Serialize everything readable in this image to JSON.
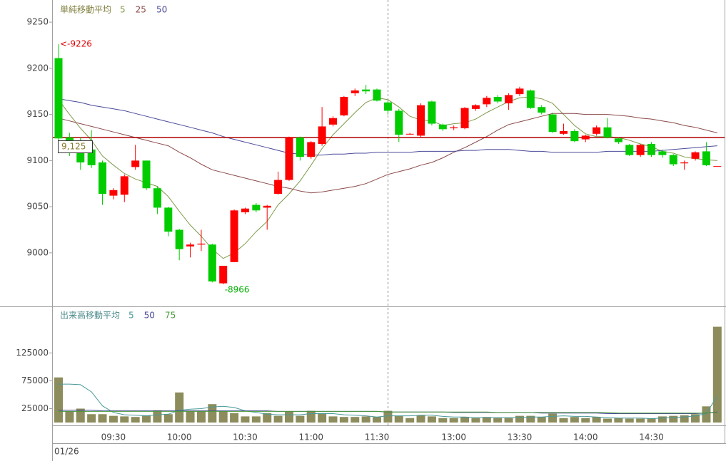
{
  "chart_data": [
    {
      "type": "candlestick",
      "title": "単純移動平均",
      "date": "01/26",
      "categories": [
        null,
        null,
        null,
        null,
        null,
        "09:30",
        null,
        null,
        null,
        null,
        null,
        "10:00",
        null,
        null,
        null,
        null,
        null,
        "10:30",
        null,
        null,
        null,
        null,
        null,
        "11:00",
        null,
        null,
        null,
        null,
        null,
        "11:30",
        null,
        null,
        null,
        null,
        null,
        null,
        "13:00",
        null,
        null,
        null,
        null,
        null,
        "13:30",
        null,
        null,
        null,
        null,
        null,
        "14:00",
        null,
        null,
        null,
        null,
        null,
        "14:30",
        null,
        null,
        null,
        null,
        null,
        null
      ],
      "open": [
        9211,
        9125,
        9116,
        9112,
        9098,
        9062,
        9063,
        9093,
        9100,
        9070,
        9049,
        9025,
        9007,
        9009,
        9009,
        8967,
        8990,
        9044,
        9052,
        9049,
        9064,
        9079,
        9125,
        9104,
        9118,
        9139,
        9149,
        9173,
        9177,
        9177,
        9163,
        9154,
        9129,
        9127,
        9164,
        9139,
        9135,
        9135,
        9156,
        9161,
        9169,
        9162,
        9172,
        9176,
        9158,
        9150,
        9129,
        9132,
        9123,
        9129,
        9136,
        9124,
        9117,
        9106,
        9118,
        9110,
        9106,
        9097,
        9102,
        9110,
        9094
      ],
      "high": [
        9226,
        9130,
        9125,
        9133,
        9100,
        9070,
        9085,
        9117,
        9100,
        9072,
        9050,
        9026,
        9011,
        9025,
        9010,
        8986,
        9047,
        9049,
        9054,
        9052,
        9088,
        9126,
        9126,
        9121,
        9158,
        9148,
        9170,
        9178,
        9182,
        9178,
        9165,
        9156,
        9130,
        9162,
        9165,
        9140,
        9138,
        9158,
        9161,
        9170,
        9171,
        9173,
        9180,
        9177,
        9160,
        9152,
        9140,
        9134,
        9128,
        9138,
        9146,
        9125,
        9118,
        9118,
        9120,
        9112,
        9107,
        9100,
        9110,
        9120,
        9094
      ],
      "low": [
        9110,
        9105,
        9090,
        9092,
        9052,
        9058,
        9055,
        9090,
        9068,
        9042,
        9018,
        8992,
        8995,
        9002,
        8968,
        8966,
        8990,
        9042,
        9044,
        9025,
        9063,
        9078,
        9100,
        9102,
        9116,
        9137,
        9148,
        9170,
        9172,
        9164,
        9150,
        9120,
        9128,
        9125,
        9138,
        9132,
        9133,
        9134,
        9154,
        9158,
        9162,
        9155,
        9170,
        9156,
        9150,
        9130,
        9128,
        9120,
        9120,
        9127,
        9124,
        9118,
        9105,
        9104,
        9104,
        9103,
        9094,
        9090,
        9100,
        9094,
        9094
      ],
      "close": [
        9124,
        9122,
        9098,
        9095,
        9064,
        9068,
        9083,
        9100,
        9070,
        9049,
        9023,
        9004,
        9009,
        9010,
        8969,
        8986,
        9046,
        9048,
        9046,
        9051,
        9079,
        9125,
        9104,
        9120,
        9137,
        9146,
        9169,
        9176,
        9175,
        9165,
        9154,
        9128,
        9129,
        9160,
        9140,
        9134,
        9136,
        9157,
        9160,
        9168,
        9164,
        9171,
        9178,
        9157,
        9152,
        9131,
        9132,
        9121,
        9127,
        9136,
        9125,
        9120,
        9106,
        9117,
        9106,
        9106,
        9096,
        9098,
        9109,
        9095,
        9094
      ],
      "up_color": "#ff0000",
      "down_color": "#00cc00",
      "series": [
        {
          "name": "5",
          "color": "#7f9a4a",
          "values": [
            9166,
            9150,
            9135,
            9122,
            9105,
            9095,
            9086,
            9080,
            9076,
            9072,
            9061,
            9045,
            9030,
            9018,
            9004,
            8994,
            9000,
            9010,
            9023,
            9034,
            9052,
            9064,
            9078,
            9095,
            9113,
            9128,
            9140,
            9152,
            9163,
            9168,
            9166,
            9158,
            9148,
            9144,
            9143,
            9138,
            9140,
            9141,
            9145,
            9152,
            9158,
            9164,
            9168,
            9169,
            9167,
            9162,
            9150,
            9138,
            9129,
            9126,
            9126,
            9125,
            9122,
            9118,
            9115,
            9110,
            9108,
            9104,
            9102,
            9101,
            9100
          ]
        },
        {
          "name": "25",
          "color": "#8b4a4a",
          "values": [
            9146,
            9143,
            9140,
            9137,
            9134,
            9131,
            9128,
            9125,
            9122,
            9119,
            9116,
            9109,
            9103,
            9096,
            9090,
            9087,
            9084,
            9081,
            9078,
            9075,
            9072,
            9070,
            9067,
            9065,
            9066,
            9068,
            9070,
            9072,
            9075,
            9080,
            9085,
            9088,
            9091,
            9095,
            9098,
            9103,
            9109,
            9114,
            9120,
            9126,
            9133,
            9139,
            9142,
            9145,
            9148,
            9151,
            9151,
            9151,
            9150,
            9150,
            9150,
            9149,
            9148,
            9146,
            9145,
            9143,
            9141,
            9138,
            9136,
            9133,
            9130
          ]
        },
        {
          "name": "50",
          "color": "#4a4a9a",
          "values": [
            9167,
            9165,
            9163,
            9160,
            9158,
            9156,
            9154,
            9151,
            9148,
            9145,
            9142,
            9139,
            9136,
            9133,
            9130,
            9126,
            9123,
            9120,
            9117,
            9114,
            9111,
            9108,
            9107,
            9106,
            9106,
            9107,
            9107,
            9108,
            9108,
            9109,
            9109,
            9109,
            9109,
            9110,
            9110,
            9110,
            9110,
            9111,
            9111,
            9112,
            9112,
            9112,
            9111,
            9110,
            9110,
            9109,
            9109,
            9109,
            9109,
            9109,
            9110,
            9110,
            9110,
            9110,
            9110,
            9111,
            9112,
            9113,
            9114,
            9115,
            9116
          ]
        }
      ],
      "reference_line": {
        "value": 9125,
        "label": "9,125",
        "color": "#b00000"
      },
      "annotations": [
        {
          "label": "<-9226",
          "value": 9226,
          "color": "#e00000"
        },
        {
          "label": "-8966",
          "value": 8966,
          "color": "#00b000"
        }
      ],
      "ylim": [
        8942,
        9274
      ],
      "yticks": [
        9000,
        9050,
        9100,
        9150,
        9200,
        9250
      ]
    },
    {
      "type": "bar",
      "title": "出来高移動平均",
      "color": "#8c8c5c",
      "values": [
        81000,
        20000,
        25000,
        15000,
        15000,
        12000,
        11000,
        10000,
        13000,
        22000,
        15000,
        54000,
        20000,
        21000,
        33000,
        20000,
        17000,
        11000,
        11000,
        17000,
        12000,
        20000,
        12000,
        21000,
        17000,
        11000,
        10000,
        10000,
        11000,
        10000,
        21000,
        12000,
        8000,
        13000,
        11000,
        8000,
        8000,
        10000,
        8000,
        10000,
        8000,
        8000,
        12000,
        12000,
        10000,
        16000,
        8000,
        10000,
        8000,
        10000,
        7000,
        8000,
        7000,
        7000,
        7000,
        11000,
        12000,
        13000,
        15000,
        29000,
        172000
      ],
      "series": [
        {
          "name": "5",
          "color": "#4a9a9a",
          "values": [
            69000,
            69000,
            68000,
            55000,
            30000,
            18000,
            14000,
            13000,
            12000,
            14000,
            15000,
            22000,
            24000,
            25000,
            28000,
            29000,
            27000,
            21000,
            18000,
            15000,
            14000,
            14000,
            14000,
            16000,
            16000,
            16000,
            14000,
            13000,
            12000,
            10000,
            12000,
            12000,
            12000,
            13000,
            13000,
            11000,
            10000,
            10000,
            9000,
            9000,
            9000,
            9000,
            9000,
            10000,
            10000,
            11000,
            12000,
            11000,
            11000,
            10000,
            9000,
            8000,
            8000,
            8000,
            7000,
            8000,
            9000,
            10000,
            12000,
            16000,
            48000
          ]
        },
        {
          "name": "50",
          "color": "#4a4a9a",
          "values": [
            22000,
            22000,
            22000,
            22000,
            21000,
            21000,
            21000,
            21000,
            21000,
            21000,
            21000,
            21000,
            21000,
            21000,
            21000,
            21000,
            21000,
            21000,
            21000,
            21000,
            20000,
            20000,
            20000,
            20000,
            20000,
            20000,
            20000,
            20000,
            20000,
            20000,
            19000,
            19000,
            19000,
            19000,
            19000,
            19000,
            18000,
            18000,
            18000,
            18000,
            18000,
            18000,
            18000,
            18000,
            17000,
            17000,
            17000,
            17000,
            17000,
            17000,
            16000,
            16000,
            16000,
            16000,
            16000,
            16000,
            16000,
            16000,
            16000,
            17000,
            19000
          ]
        },
        {
          "name": "75",
          "color": "#4a9a3a",
          "values": [
            20000,
            20000,
            20000,
            20000,
            20000,
            20000,
            20000,
            20000,
            20000,
            20000,
            20000,
            20000,
            20000,
            20000,
            20000,
            20000,
            20000,
            20000,
            20000,
            20000,
            20000,
            20000,
            20000,
            20000,
            20000,
            20000,
            20000,
            20000,
            20000,
            20000,
            19000,
            19000,
            19000,
            19000,
            19000,
            19000,
            19000,
            19000,
            19000,
            19000,
            18000,
            18000,
            18000,
            18000,
            18000,
            18000,
            18000,
            18000,
            18000,
            18000,
            18000,
            17000,
            17000,
            17000,
            17000,
            17000,
            17000,
            17000,
            17000,
            17000,
            18000
          ]
        }
      ],
      "ylim": [
        0,
        206000
      ],
      "yticks": [
        25000,
        75000,
        125000
      ]
    }
  ]
}
